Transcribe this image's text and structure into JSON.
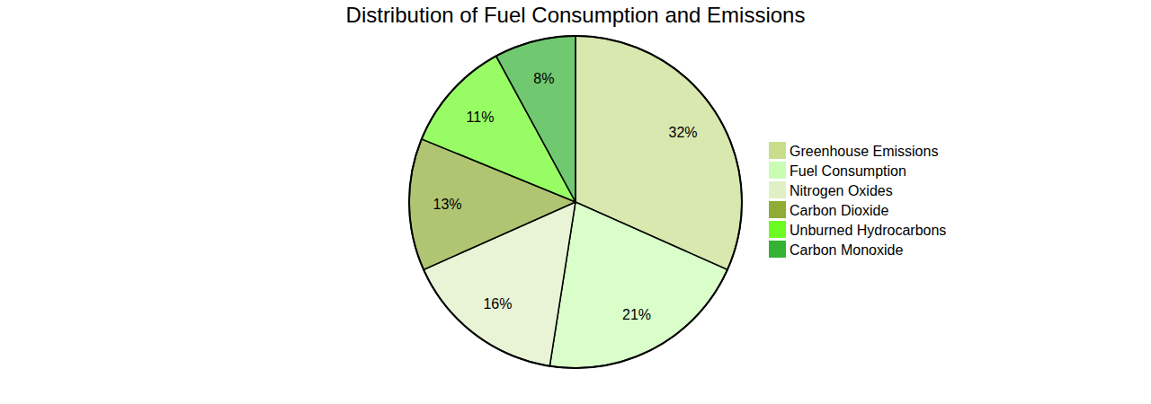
{
  "chart_data": {
    "type": "pie",
    "title": "Distribution of Fuel Consumption and Emissions",
    "categories": [
      "Greenhouse Emissions",
      "Fuel Consumption",
      "Nitrogen Oxides",
      "Carbon Dioxide",
      "Unburned Hydrocarbons",
      "Carbon Monoxide"
    ],
    "values": [
      32,
      21,
      16,
      13,
      11,
      8
    ],
    "value_labels": [
      "32%",
      "21%",
      "16%",
      "13%",
      "11%",
      "8%"
    ],
    "colors": [
      "#c8de8c",
      "#c9fdb3",
      "#e0f0c6",
      "#8fad36",
      "#6cfc24",
      "#33b233"
    ],
    "data_labels": true
  }
}
